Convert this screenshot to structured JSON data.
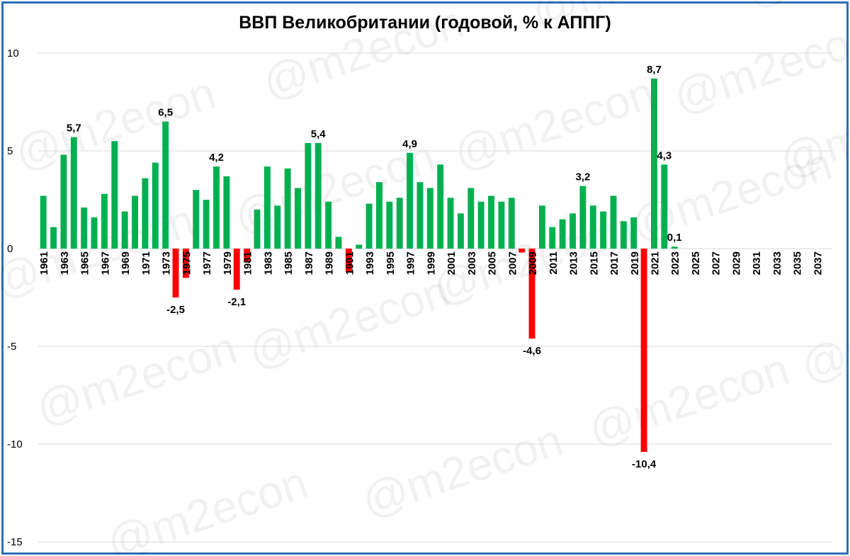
{
  "chart_data": {
    "type": "bar",
    "title": "ВВП Великобритании (годовой, % к АППГ)",
    "watermark": "@m2econ",
    "ylim": [
      -15,
      10
    ],
    "yticks": [
      10,
      5,
      0,
      -5,
      -10,
      -15
    ],
    "ytick_labels": [
      "10",
      "5",
      "0",
      "-5",
      "-10",
      "-15"
    ],
    "grid": true,
    "x_start": 1961,
    "x_end": 2038,
    "xtick_labels": [
      "1961",
      "1963",
      "1965",
      "1967",
      "1969",
      "1971",
      "1973",
      "1975",
      "1977",
      "1979",
      "1981",
      "1983",
      "1985",
      "1987",
      "1989",
      "1991",
      "1993",
      "1995",
      "1997",
      "1999",
      "2001",
      "2003",
      "2005",
      "2007",
      "2009",
      "2011",
      "2013",
      "2015",
      "2017",
      "2019",
      "2021",
      "2023",
      "2025",
      "2027",
      "2029",
      "2031",
      "2033",
      "2035",
      "2037"
    ],
    "colors": {
      "positive": "#00b050",
      "negative": "#ff0000",
      "grid": "#d9d9d9",
      "border": "#2f6fb5"
    },
    "series": [
      {
        "values": [
          {
            "x": 1961,
            "y": 2.7
          },
          {
            "x": 1962,
            "y": 1.1
          },
          {
            "x": 1963,
            "y": 4.8
          },
          {
            "x": 1964,
            "y": 5.7,
            "label": "5,7"
          },
          {
            "x": 1965,
            "y": 2.1
          },
          {
            "x": 1966,
            "y": 1.6
          },
          {
            "x": 1967,
            "y": 2.8
          },
          {
            "x": 1968,
            "y": 5.5
          },
          {
            "x": 1969,
            "y": 1.9
          },
          {
            "x": 1970,
            "y": 2.7
          },
          {
            "x": 1971,
            "y": 3.6
          },
          {
            "x": 1972,
            "y": 4.4
          },
          {
            "x": 1973,
            "y": 6.5,
            "label": "6,5"
          },
          {
            "x": 1974,
            "y": -2.5,
            "label": "-2,5"
          },
          {
            "x": 1975,
            "y": -1.5
          },
          {
            "x": 1976,
            "y": 3.0
          },
          {
            "x": 1977,
            "y": 2.5
          },
          {
            "x": 1978,
            "y": 4.2,
            "label": "4,2"
          },
          {
            "x": 1979,
            "y": 3.7
          },
          {
            "x": 1980,
            "y": -2.1,
            "label": "-2,1"
          },
          {
            "x": 1981,
            "y": -0.7
          },
          {
            "x": 1982,
            "y": 2.0
          },
          {
            "x": 1983,
            "y": 4.2
          },
          {
            "x": 1984,
            "y": 2.2
          },
          {
            "x": 1985,
            "y": 4.1
          },
          {
            "x": 1986,
            "y": 3.1
          },
          {
            "x": 1987,
            "y": 5.4
          },
          {
            "x": 1988,
            "y": 5.4,
            "label": "5,4"
          },
          {
            "x": 1989,
            "y": 2.4
          },
          {
            "x": 1990,
            "y": 0.6
          },
          {
            "x": 1991,
            "y": -1.2
          },
          {
            "x": 1992,
            "y": 0.2
          },
          {
            "x": 1993,
            "y": 2.3
          },
          {
            "x": 1994,
            "y": 3.4
          },
          {
            "x": 1995,
            "y": 2.4
          },
          {
            "x": 1996,
            "y": 2.6
          },
          {
            "x": 1997,
            "y": 4.9,
            "label": "4,9"
          },
          {
            "x": 1998,
            "y": 3.4
          },
          {
            "x": 1999,
            "y": 3.1
          },
          {
            "x": 2000,
            "y": 4.3
          },
          {
            "x": 2001,
            "y": 2.6
          },
          {
            "x": 2002,
            "y": 1.8
          },
          {
            "x": 2003,
            "y": 3.1
          },
          {
            "x": 2004,
            "y": 2.4
          },
          {
            "x": 2005,
            "y": 2.7
          },
          {
            "x": 2006,
            "y": 2.4
          },
          {
            "x": 2007,
            "y": 2.6
          },
          {
            "x": 2008,
            "y": -0.2
          },
          {
            "x": 2009,
            "y": -4.6,
            "label": "-4,6"
          },
          {
            "x": 2010,
            "y": 2.2
          },
          {
            "x": 2011,
            "y": 1.1
          },
          {
            "x": 2012,
            "y": 1.5
          },
          {
            "x": 2013,
            "y": 1.8
          },
          {
            "x": 2014,
            "y": 3.2,
            "label": "3,2"
          },
          {
            "x": 2015,
            "y": 2.2
          },
          {
            "x": 2016,
            "y": 1.9
          },
          {
            "x": 2017,
            "y": 2.7
          },
          {
            "x": 2018,
            "y": 1.4
          },
          {
            "x": 2019,
            "y": 1.6
          },
          {
            "x": 2020,
            "y": -10.4,
            "label": "-10,4"
          },
          {
            "x": 2021,
            "y": 8.7,
            "label": "8,7"
          },
          {
            "x": 2022,
            "y": 4.3,
            "label": "4,3"
          },
          {
            "x": 2023,
            "y": 0.1,
            "label": "0,1"
          }
        ]
      }
    ]
  }
}
